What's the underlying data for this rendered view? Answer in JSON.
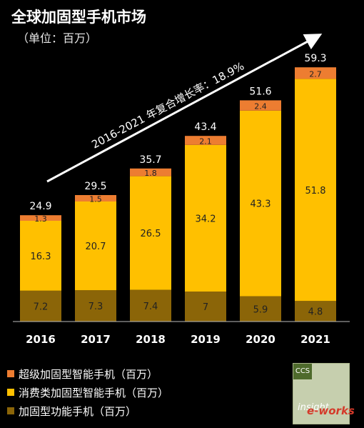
{
  "title": "全球加固型手机市场",
  "subtitle": "（单位：百万）",
  "cagr_label": "2016-2021 年复合增长率：18.9%",
  "chart_data": {
    "type": "bar",
    "stacked": true,
    "categories": [
      "2016",
      "2017",
      "2018",
      "2019",
      "2020",
      "2021"
    ],
    "series": [
      {
        "name": "加固型功能手机（百万）",
        "values": [
          7.2,
          7.3,
          7.4,
          7.0,
          5.9,
          4.8
        ],
        "color": "#8B6508"
      },
      {
        "name": "消费类加固型智能手机（百万）",
        "values": [
          16.3,
          20.7,
          26.5,
          34.2,
          43.3,
          51.8
        ],
        "color": "#FFC000"
      },
      {
        "name": "超级加固型智能手机（百万）",
        "values": [
          1.3,
          1.5,
          1.8,
          2.1,
          2.4,
          2.7
        ],
        "color": "#ED7D31"
      }
    ],
    "totals": [
      "24.9",
      "29.5",
      "35.7",
      "43.4",
      "51.6",
      "59.3"
    ],
    "ylim": [
      0,
      60
    ],
    "grid": false,
    "legend": "bottom-left"
  },
  "legend": {
    "items": [
      {
        "label": "超级加固型智能手机（百万）",
        "color": "#ED7D31"
      },
      {
        "label": "消费类加固型智能手机（百万）",
        "color": "#FFC000"
      },
      {
        "label": "加固型功能手机（百万）",
        "color": "#8B6508"
      }
    ]
  },
  "logo": {
    "tag": "CCS",
    "word": "insight"
  },
  "watermark": "e-works"
}
